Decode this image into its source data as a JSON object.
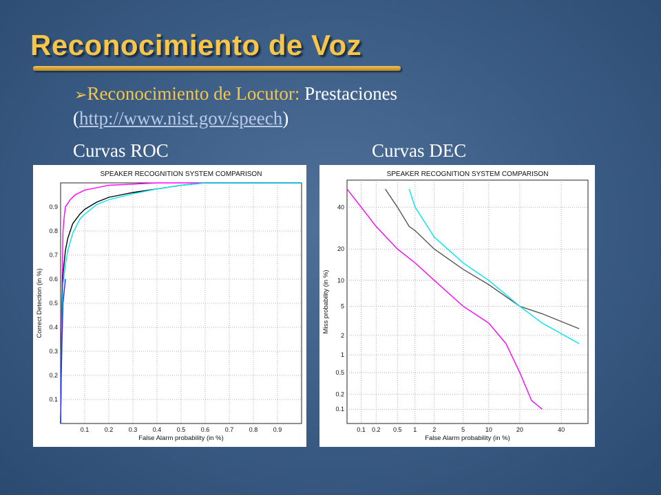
{
  "slide": {
    "title": "Reconocimiento de Voz",
    "bullet_arrow": "➢",
    "bullet_highlight": "Reconocimiento de Locutor:",
    "bullet_rest": " Prestaciones",
    "paren_open": "(",
    "link_text": "http://www.nist.gov/speech",
    "paren_close": ")",
    "subtitle_left": "Curvas ROC",
    "subtitle_right": "Curvas DEC"
  },
  "chart_data": [
    {
      "type": "line",
      "title": "SPEAKER RECOGNITION SYSTEM COMPARISON",
      "xlabel": "False Alarm probability (in %)",
      "ylabel": "Correct Detection (in %)",
      "xlim": [
        0,
        1
      ],
      "ylim": [
        0,
        1
      ],
      "xticks": [
        "0.1",
        "0.2",
        "0.3",
        "0.4",
        "0.5",
        "0.6",
        "0.7",
        "0.8",
        "0.9"
      ],
      "yticks": [
        "0.1",
        "0.2",
        "0.3",
        "0.4",
        "0.5",
        "0.6",
        "0.7",
        "0.8",
        "0.9"
      ],
      "grid": true,
      "colors": [
        "#ff00ff",
        "#000000",
        "#00e5f0",
        "#2a2aff"
      ],
      "series": [
        {
          "values_x": [
            0,
            0.005,
            0.01,
            0.015,
            0.02,
            0.04,
            0.06,
            0.1,
            0.15,
            0.2,
            0.3,
            0.4,
            0.5,
            0.6,
            1.0
          ],
          "values_y": [
            0,
            0.5,
            0.8,
            0.86,
            0.9,
            0.93,
            0.95,
            0.97,
            0.98,
            0.99,
            0.995,
            1.0,
            1.0,
            1.0,
            1.0
          ]
        },
        {
          "values_x": [
            0,
            0.005,
            0.01,
            0.02,
            0.03,
            0.05,
            0.08,
            0.1,
            0.15,
            0.2,
            0.25,
            0.3,
            0.4,
            0.5,
            0.6,
            1.0
          ],
          "values_y": [
            0,
            0.45,
            0.62,
            0.72,
            0.77,
            0.83,
            0.87,
            0.89,
            0.92,
            0.94,
            0.95,
            0.96,
            0.975,
            0.99,
            1.0,
            1.0
          ]
        },
        {
          "values_x": [
            0,
            0.005,
            0.01,
            0.02,
            0.03,
            0.05,
            0.08,
            0.1,
            0.15,
            0.2,
            0.3,
            0.4,
            0.5,
            0.6,
            1.0
          ],
          "values_y": [
            0,
            0.4,
            0.58,
            0.66,
            0.72,
            0.79,
            0.85,
            0.87,
            0.91,
            0.93,
            0.955,
            0.975,
            0.99,
            1.0,
            1.0
          ]
        },
        {
          "values_x": [
            0,
            0.003,
            0.006,
            0.01,
            0.02
          ],
          "values_y": [
            0,
            0.2,
            0.35,
            0.5,
            0.6
          ]
        }
      ]
    },
    {
      "type": "line",
      "title": "SPEAKER RECOGNITION SYSTEM COMPARISON",
      "xlabel": "False Alarm probability (in %)",
      "ylabel": "Miss probability (in %)",
      "xticks": [
        "0.1",
        "0.2",
        "0.5",
        "1",
        "2",
        "5",
        "10",
        "20",
        "40"
      ],
      "yticks": [
        "0.1",
        "0.2",
        "0.5",
        "1",
        "2",
        "5",
        "10",
        "20",
        "40"
      ],
      "grid": true,
      "colors": [
        "#ff00ff",
        "#555555",
        "#00e5f0"
      ],
      "series": [
        {
          "values_x": [
            0.05,
            0.1,
            0.2,
            0.5,
            1,
            2,
            5,
            10,
            15,
            20,
            25,
            30
          ],
          "values_y": [
            50,
            40,
            30,
            20,
            15,
            10,
            5,
            3,
            1.5,
            0.5,
            0.15,
            0.1
          ]
        },
        {
          "values_x": [
            0.3,
            0.5,
            0.8,
            1,
            2,
            5,
            10,
            20,
            30,
            50
          ],
          "values_y": [
            50,
            40,
            30,
            28,
            20,
            13,
            9,
            5,
            4,
            2.5
          ]
        },
        {
          "values_x": [
            0.8,
            1,
            2,
            5,
            10,
            20,
            30,
            50
          ],
          "values_y": [
            50,
            40,
            25,
            15,
            10,
            5,
            3,
            1.5
          ]
        }
      ]
    }
  ]
}
